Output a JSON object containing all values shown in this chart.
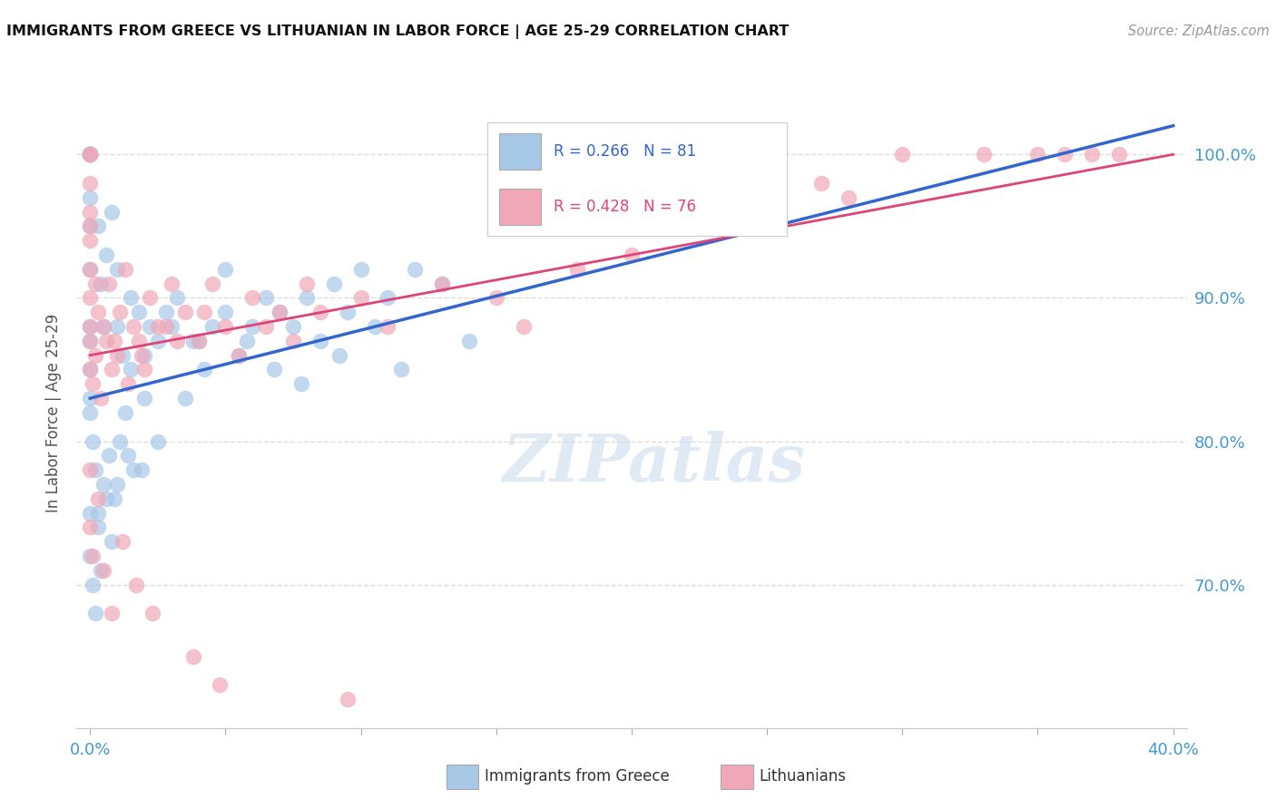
{
  "title": "IMMIGRANTS FROM GREECE VS LITHUANIAN IN LABOR FORCE | AGE 25-29 CORRELATION CHART",
  "source": "Source: ZipAtlas.com",
  "ylabel": "In Labor Force | Age 25-29",
  "xlim": [
    -0.5,
    40.5
  ],
  "ylim": [
    60.0,
    104.0
  ],
  "yticks": [
    70.0,
    80.0,
    90.0,
    100.0
  ],
  "xtick_positions": [
    0.0,
    5.0,
    10.0,
    15.0,
    20.0,
    25.0,
    30.0,
    35.0,
    40.0
  ],
  "xtick_labels_show": [
    "0.0%",
    "",
    "",
    "",
    "",
    "",
    "",
    "",
    "40.0%"
  ],
  "greece_color": "#a8c8e8",
  "lith_color": "#f0a8b8",
  "greece_line_color": "#3366cc",
  "lith_line_color": "#dd4477",
  "R_greece": 0.266,
  "N_greece": 81,
  "R_lith": 0.428,
  "N_lith": 76,
  "greece_x": [
    0.0,
    0.0,
    0.0,
    0.0,
    0.0,
    0.0,
    0.0,
    0.0,
    0.0,
    0.0,
    0.0,
    0.0,
    0.3,
    0.4,
    0.5,
    0.6,
    0.8,
    1.0,
    1.0,
    1.2,
    1.5,
    1.8,
    2.0,
    2.5,
    0.0,
    0.0,
    0.0,
    0.1,
    0.2,
    0.3,
    0.5,
    0.7,
    0.9,
    1.1,
    1.3,
    1.6,
    2.2,
    2.8,
    3.2,
    3.8,
    4.5,
    5.0,
    5.5,
    6.0,
    7.0,
    8.0,
    9.0,
    10.0,
    1.5,
    2.0,
    3.0,
    4.0,
    5.0,
    6.5,
    7.5,
    8.5,
    9.5,
    11.0,
    12.0,
    13.0,
    0.0,
    0.0,
    0.1,
    0.2,
    0.3,
    0.4,
    0.6,
    0.8,
    1.0,
    1.4,
    1.9,
    2.5,
    3.5,
    4.2,
    5.8,
    6.8,
    7.8,
    9.2,
    10.5,
    11.5,
    14.0
  ],
  "greece_y": [
    87.0,
    88.0,
    92.0,
    95.0,
    97.0,
    100.0,
    100.0,
    100.0,
    100.0,
    100.0,
    100.0,
    100.0,
    95.0,
    91.0,
    88.0,
    93.0,
    96.0,
    88.0,
    92.0,
    86.0,
    90.0,
    89.0,
    83.0,
    87.0,
    85.0,
    83.0,
    82.0,
    80.0,
    78.0,
    75.0,
    77.0,
    79.0,
    76.0,
    80.0,
    82.0,
    78.0,
    88.0,
    89.0,
    90.0,
    87.0,
    88.0,
    92.0,
    86.0,
    88.0,
    89.0,
    90.0,
    91.0,
    92.0,
    85.0,
    86.0,
    88.0,
    87.0,
    89.0,
    90.0,
    88.0,
    87.0,
    89.0,
    90.0,
    92.0,
    91.0,
    75.0,
    72.0,
    70.0,
    68.0,
    74.0,
    71.0,
    76.0,
    73.0,
    77.0,
    79.0,
    78.0,
    80.0,
    83.0,
    85.0,
    87.0,
    85.0,
    84.0,
    86.0,
    88.0,
    85.0,
    87.0
  ],
  "lith_x": [
    0.0,
    0.0,
    0.0,
    0.0,
    0.0,
    0.0,
    0.0,
    0.0,
    0.0,
    0.0,
    0.2,
    0.3,
    0.5,
    0.7,
    0.9,
    1.1,
    1.3,
    1.6,
    1.9,
    2.2,
    2.5,
    3.0,
    3.5,
    4.0,
    4.5,
    5.0,
    6.0,
    7.0,
    8.0,
    0.0,
    0.1,
    0.2,
    0.4,
    0.6,
    0.8,
    1.0,
    1.4,
    1.8,
    2.0,
    2.8,
    3.2,
    4.2,
    5.5,
    6.5,
    7.5,
    8.5,
    10.0,
    11.0,
    13.0,
    15.0,
    16.0,
    18.0,
    20.0,
    22.0,
    24.0,
    25.0,
    27.0,
    28.0,
    30.0,
    33.0,
    35.0,
    36.0,
    37.0,
    38.0,
    0.0,
    0.0,
    0.1,
    0.3,
    0.5,
    0.8,
    1.2,
    1.7,
    2.3,
    3.8,
    4.8,
    9.5
  ],
  "lith_y": [
    87.0,
    88.0,
    90.0,
    92.0,
    94.0,
    95.0,
    96.0,
    98.0,
    100.0,
    100.0,
    91.0,
    89.0,
    88.0,
    91.0,
    87.0,
    89.0,
    92.0,
    88.0,
    86.0,
    90.0,
    88.0,
    91.0,
    89.0,
    87.0,
    91.0,
    88.0,
    90.0,
    89.0,
    91.0,
    85.0,
    84.0,
    86.0,
    83.0,
    87.0,
    85.0,
    86.0,
    84.0,
    87.0,
    85.0,
    88.0,
    87.0,
    89.0,
    86.0,
    88.0,
    87.0,
    89.0,
    90.0,
    88.0,
    91.0,
    90.0,
    88.0,
    92.0,
    93.0,
    95.0,
    96.0,
    97.0,
    98.0,
    97.0,
    100.0,
    100.0,
    100.0,
    100.0,
    100.0,
    100.0,
    78.0,
    74.0,
    72.0,
    76.0,
    71.0,
    68.0,
    73.0,
    70.0,
    68.0,
    65.0,
    63.0,
    62.0
  ],
  "background_color": "#ffffff",
  "grid_color": "#dddddd",
  "tick_label_color": "#4499cc",
  "watermark_text": "ZIPatlas",
  "watermark_color": "#ccddee"
}
